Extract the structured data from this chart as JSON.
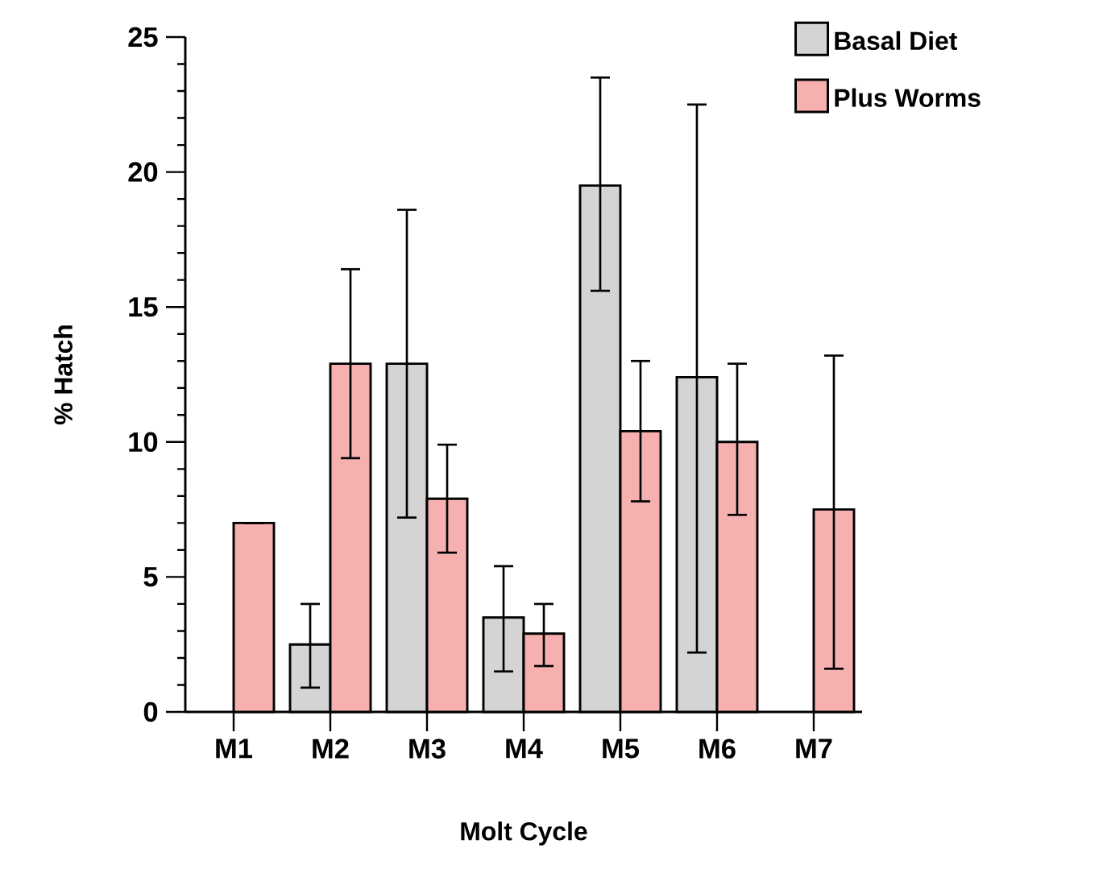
{
  "chart_data": {
    "type": "bar",
    "xlabel": "Molt Cycle",
    "ylabel": "% Hatch",
    "categories": [
      "M1",
      "M2",
      "M3",
      "M4",
      "M5",
      "M6",
      "M7"
    ],
    "series": [
      {
        "name": "Basal Diet",
        "color": "#d4d4d4",
        "values": [
          null,
          2.5,
          12.9,
          3.5,
          19.5,
          12.4,
          null
        ],
        "errors": [
          null,
          [
            0.9,
            4.0
          ],
          [
            7.2,
            18.6
          ],
          [
            1.5,
            5.4
          ],
          [
            15.6,
            23.5
          ],
          [
            2.2,
            22.5
          ],
          null
        ]
      },
      {
        "name": "Plus Worms",
        "color": "#f7b0b0",
        "values": [
          7.0,
          12.9,
          7.9,
          2.9,
          10.4,
          10.0,
          7.5
        ],
        "errors": [
          null,
          [
            9.4,
            16.4
          ],
          [
            5.9,
            9.9
          ],
          [
            1.7,
            4.0
          ],
          [
            7.8,
            13.0
          ],
          [
            7.3,
            12.9
          ],
          [
            1.6,
            13.2
          ]
        ]
      }
    ],
    "ylim": [
      0,
      25
    ],
    "yticks": [
      0,
      5,
      10,
      15,
      20,
      25
    ],
    "legend": "top right"
  }
}
